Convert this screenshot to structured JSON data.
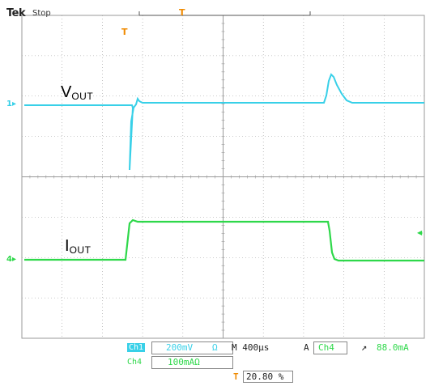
{
  "header": {
    "brand": "Tek",
    "acq_state": "Stop",
    "trigger_pos_marker": "T",
    "center_marker": "T",
    "right_marker": "◀"
  },
  "traces": {
    "vout_label_main": "V",
    "vout_label_sub": "OUT",
    "iout_label_main": "I",
    "iout_label_sub": "OUT",
    "ch1_marker": "1▸",
    "ch4_marker": "4▸"
  },
  "status_bar": {
    "ch1_badge": "Ch1",
    "ch1_scale": "200mV",
    "ch1_bw": "Ω",
    "timebase": "M 400µs",
    "trigger_src_label": "A",
    "trigger_channel": "Ch4",
    "trigger_slope": "↗",
    "trigger_level": "88.0mA",
    "ch4_badge": "Ch4",
    "ch4_scale": "100mAΩ",
    "ch4_bw": "",
    "position_marker": "T",
    "position_value": "20.80 %"
  },
  "colors": {
    "vout": "#38d0e8",
    "iout": "#2ed84a",
    "grid": "#9a9a9a",
    "marker": "#f08a00"
  }
}
